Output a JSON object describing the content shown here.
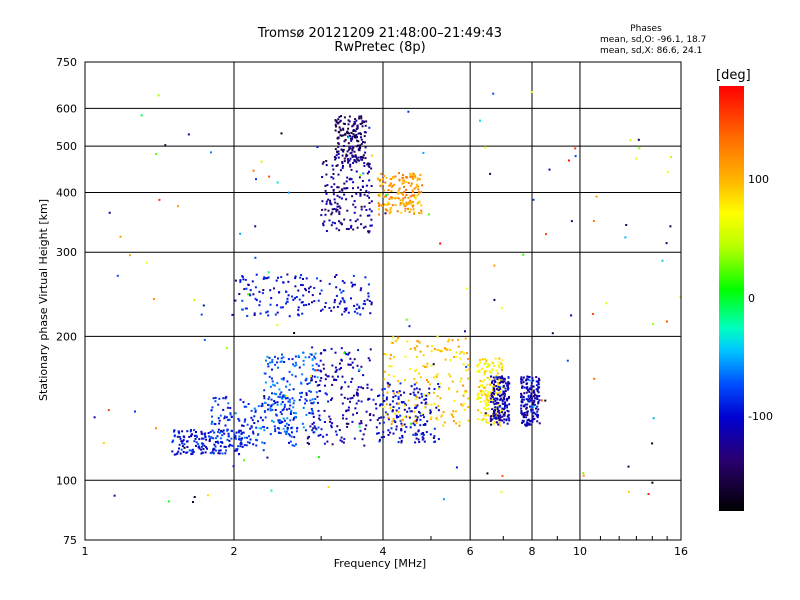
{
  "chart_data": {
    "type": "scatter",
    "title": "Tromsø 20121209 21:48:00–21:49:43",
    "subtitle": "RwPretec (8p)",
    "xlabel": "Frequency [MHz]",
    "ylabel": "Stationary phase Virtual Height [km]",
    "xscale": "log",
    "yscale": "log",
    "xlim": [
      1,
      16
    ],
    "ylim": [
      75,
      750
    ],
    "xticks": [
      1,
      2,
      4,
      6,
      8,
      10,
      16
    ],
    "xtick_labels": [
      "1",
      "2",
      "4",
      "6",
      "8",
      "10",
      "16"
    ],
    "yticks": [
      75,
      100,
      200,
      300,
      400,
      500,
      600,
      750
    ],
    "ytick_labels": [
      "75",
      "100",
      "200",
      "300",
      "400",
      "500",
      "600",
      "750"
    ],
    "grid": true,
    "phases": {
      "title": "Phases",
      "o_line": "mean, sd,O: -96.1, 18.7",
      "x_line": "mean, sd,X: 86.6, 24.1"
    },
    "colorbar": {
      "unit": "[deg]",
      "ticks": [
        "100",
        "0",
        "-100"
      ],
      "tick_values": [
        100,
        0,
        -100
      ],
      "range": [
        -180,
        180
      ]
    },
    "clusters": [
      {
        "x": [
          1.5,
          2.1
        ],
        "y": [
          113,
          128
        ],
        "phase": -95
      },
      {
        "x": [
          1.8,
          2.7
        ],
        "y": [
          118,
          150
        ],
        "phase": -85
      },
      {
        "x": [
          2.3,
          3.0
        ],
        "y": [
          125,
          185
        ],
        "phase": -75
      },
      {
        "x": [
          2.8,
          3.8
        ],
        "y": [
          118,
          190
        ],
        "phase": -115
      },
      {
        "x": [
          3.0,
          3.8
        ],
        "y": [
          330,
          480
        ],
        "phase": -125
      },
      {
        "x": [
          3.2,
          3.7
        ],
        "y": [
          460,
          580
        ],
        "phase": -140
      },
      {
        "x": [
          3.9,
          4.8
        ],
        "y": [
          360,
          440
        ],
        "phase": 110
      },
      {
        "x": [
          3.8,
          5.2
        ],
        "y": [
          120,
          160
        ],
        "phase": -105
      },
      {
        "x": [
          4.0,
          6.0
        ],
        "y": [
          130,
          200
        ],
        "phase": 95
      },
      {
        "x": [
          6.2,
          7.0
        ],
        "y": [
          130,
          180
        ],
        "phase": 80
      },
      {
        "x": [
          6.6,
          7.2
        ],
        "y": [
          130,
          165
        ],
        "phase": -110
      },
      {
        "x": [
          7.6,
          8.3
        ],
        "y": [
          130,
          165
        ],
        "phase": -110
      },
      {
        "x": [
          2.0,
          3.8
        ],
        "y": [
          220,
          270
        ],
        "phase": -100
      },
      {
        "x": [
          1.0,
          16.0
        ],
        "y": [
          90,
          650
        ],
        "phase": 100
      }
    ]
  }
}
